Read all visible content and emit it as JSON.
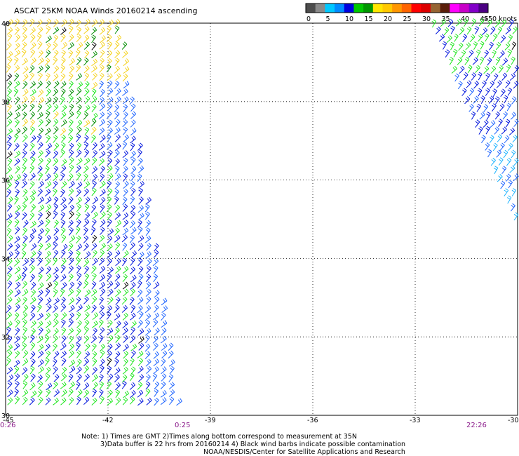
{
  "title": "ASCAT 25KM NOAA Winds 20160214 ascending",
  "legend": {
    "colors": [
      "#4d4d4d",
      "#8a8a8a",
      "#00c8ff",
      "#008aff",
      "#0000dc",
      "#00c800",
      "#009600",
      "#ffe600",
      "#ffc800",
      "#ff9600",
      "#ff6400",
      "#ff0000",
      "#dc0000",
      "#966432",
      "#5a1e0a",
      "#ff00ff",
      "#c800c8",
      "#8200c8",
      "#4b0082"
    ],
    "labels": [
      "0",
      "5",
      "10",
      "15",
      "20",
      "25",
      "30",
      "35",
      "40",
      "45"
    ],
    "unit_label": ">50 knots"
  },
  "latitudes": [
    {
      "value": 40,
      "label": "40"
    },
    {
      "value": 38,
      "label": "38"
    },
    {
      "value": 36,
      "label": "36"
    },
    {
      "value": 34,
      "label": "34"
    },
    {
      "value": 32,
      "label": "32"
    },
    {
      "value": 30,
      "label": "30"
    }
  ],
  "longitudes": [
    {
      "value": -45,
      "label": "-45"
    },
    {
      "value": -42,
      "label": "-42"
    },
    {
      "value": -39,
      "label": "-39"
    },
    {
      "value": -36,
      "label": "-36"
    },
    {
      "value": -33,
      "label": "-33"
    },
    {
      "value": -30,
      "label": "-30"
    }
  ],
  "times": [
    {
      "label": "0:26"
    },
    {
      "label": "0:25"
    },
    {
      "label": "22:26"
    }
  ],
  "notes": [
    "Note: 1) Times are GMT 2)Times along bottom correspond to measurement at 35N",
    "3)Data buffer is 22 hrs from 20160214 4) Black wind barbs indicate possible contamination",
    "NOAA/NESDIS/Center for Satellite Applications and Research"
  ],
  "swath_colors": {
    "yellow": "#f5d21e",
    "green_light": "#1ee61e",
    "green_dark": "#008c00",
    "blue_dark": "#0014dc",
    "blue_mid": "#1e64ff",
    "cyan": "#1eb4ff",
    "black": "#000000"
  }
}
